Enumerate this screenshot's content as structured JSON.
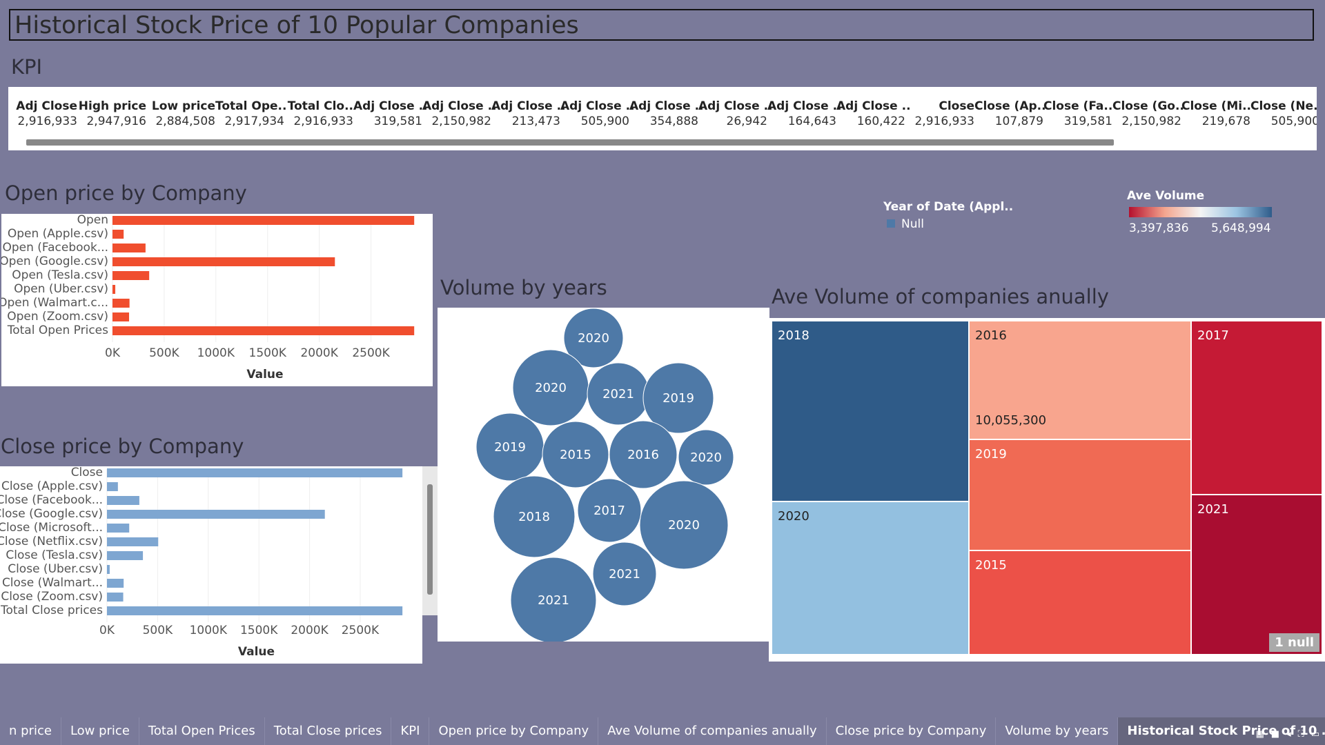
{
  "title": "Historical Stock Price of 10 Popular Companies",
  "kpi": {
    "title": "KPI",
    "columns": [
      {
        "header": "Adj Close",
        "value": "2,916,933"
      },
      {
        "header": "High price",
        "value": "2,947,916"
      },
      {
        "header": "Low price",
        "value": "2,884,508"
      },
      {
        "header": "Total Ope..",
        "value": "2,917,934"
      },
      {
        "header": "Total Clo..",
        "value": "2,916,933"
      },
      {
        "header": "Adj Close ..",
        "value": "319,581"
      },
      {
        "header": "Adj Close ..",
        "value": "2,150,982"
      },
      {
        "header": "Adj Close ..",
        "value": "213,473"
      },
      {
        "header": "Adj Close ..",
        "value": "505,900"
      },
      {
        "header": "Adj Close ..",
        "value": "354,888"
      },
      {
        "header": "Adj Close ..",
        "value": "26,942"
      },
      {
        "header": "Adj Close ..",
        "value": "164,643"
      },
      {
        "header": "Adj Close ..",
        "value": "160,422"
      },
      {
        "header": "Close",
        "value": "2,916,933"
      },
      {
        "header": "Close (Ap..",
        "value": "107,879"
      },
      {
        "header": "Close (Fa..",
        "value": "319,581"
      },
      {
        "header": "Close (Go..",
        "value": "2,150,982"
      },
      {
        "header": "Close (Mi..",
        "value": "219,678"
      },
      {
        "header": "Close (Ne..",
        "value": "505,900"
      }
    ]
  },
  "open_chart": {
    "title": "Open price by Company",
    "xlabel": "Value",
    "ticks": [
      "0K",
      "500K",
      "1000K",
      "1500K",
      "2000K",
      "2500K"
    ],
    "tick_values": [
      0,
      500000,
      1000000,
      1500000,
      2000000,
      2500000
    ],
    "xmax": 2950000,
    "color": "#f04e2e",
    "categories": [
      "Open",
      "Open (Apple.csv)",
      "Open (Facebook...",
      "Open (Google.csv)",
      "Open (Tesla.csv)",
      "Open (Uber.csv)",
      "Open (Walmart.c...",
      "Open (Zoom.csv)",
      "Total Open Prices"
    ],
    "values": [
      2917934,
      107900,
      319600,
      2150982,
      354900,
      27000,
      164600,
      160400,
      2917934
    ]
  },
  "close_chart": {
    "title": "Close price by Company",
    "xlabel": "Value",
    "ticks": [
      "0K",
      "500K",
      "1000K",
      "1500K",
      "2000K",
      "2500K"
    ],
    "tick_values": [
      0,
      500000,
      1000000,
      1500000,
      2000000,
      2500000
    ],
    "xmax": 2950000,
    "color": "#7ea6d1",
    "categories": [
      "Close",
      "Close (Apple.csv)",
      "Close (Facebook...",
      "Close (Google.csv)",
      "Close (Microsoft...",
      "Close (Netflix.csv)",
      "Close (Tesla.csv)",
      "Close (Uber.csv)",
      "Close (Walmart...",
      "Close (Zoom.csv)",
      "Total Close prices"
    ],
    "values": [
      2916933,
      107879,
      319581,
      2150982,
      219678,
      505900,
      354888,
      26942,
      164643,
      160422,
      2916933
    ]
  },
  "volume_chart": {
    "title": "Volume by years",
    "color": "#4e79a7",
    "bubbles": [
      "2020",
      "2020",
      "2021",
      "2019",
      "2019",
      "2015",
      "2016",
      "2020",
      "2018",
      "2017",
      "2020",
      "2021",
      "2021"
    ]
  },
  "treemap": {
    "title": "Ave Volume of companies anually",
    "cells": [
      {
        "label": "2018",
        "color": "#2f5b88"
      },
      {
        "label": "2020",
        "color": "#93c0e0"
      },
      {
        "label": "2016",
        "color": "#f8a58e",
        "value": "10,055,300"
      },
      {
        "label": "2019",
        "color": "#f06a54"
      },
      {
        "label": "2015",
        "color": "#ec5148"
      },
      {
        "label": "2017",
        "color": "#c51a35"
      },
      {
        "label": "2021",
        "color": "#a90d31"
      }
    ],
    "null_badge": "1 null"
  },
  "legend_year": {
    "title": "Year of Date (Appl..",
    "item": "Null",
    "color": "#4e79a7"
  },
  "legend_volume": {
    "title": "Ave Volume",
    "min": "3,397,836",
    "max": "5,648,994"
  },
  "tabs": [
    {
      "label": "n price",
      "active": false
    },
    {
      "label": "Low price",
      "active": false
    },
    {
      "label": "Total Open Prices",
      "active": false
    },
    {
      "label": "Total Close prices",
      "active": false
    },
    {
      "label": "KPI",
      "active": false
    },
    {
      "label": "Open price by Company",
      "active": false
    },
    {
      "label": "Ave Volume of companies anually",
      "active": false
    },
    {
      "label": "Close price by Company",
      "active": false
    },
    {
      "label": "Volume by years",
      "active": false
    },
    {
      "label": "Historical Stock Price of 10 ...",
      "active": true
    }
  ]
}
